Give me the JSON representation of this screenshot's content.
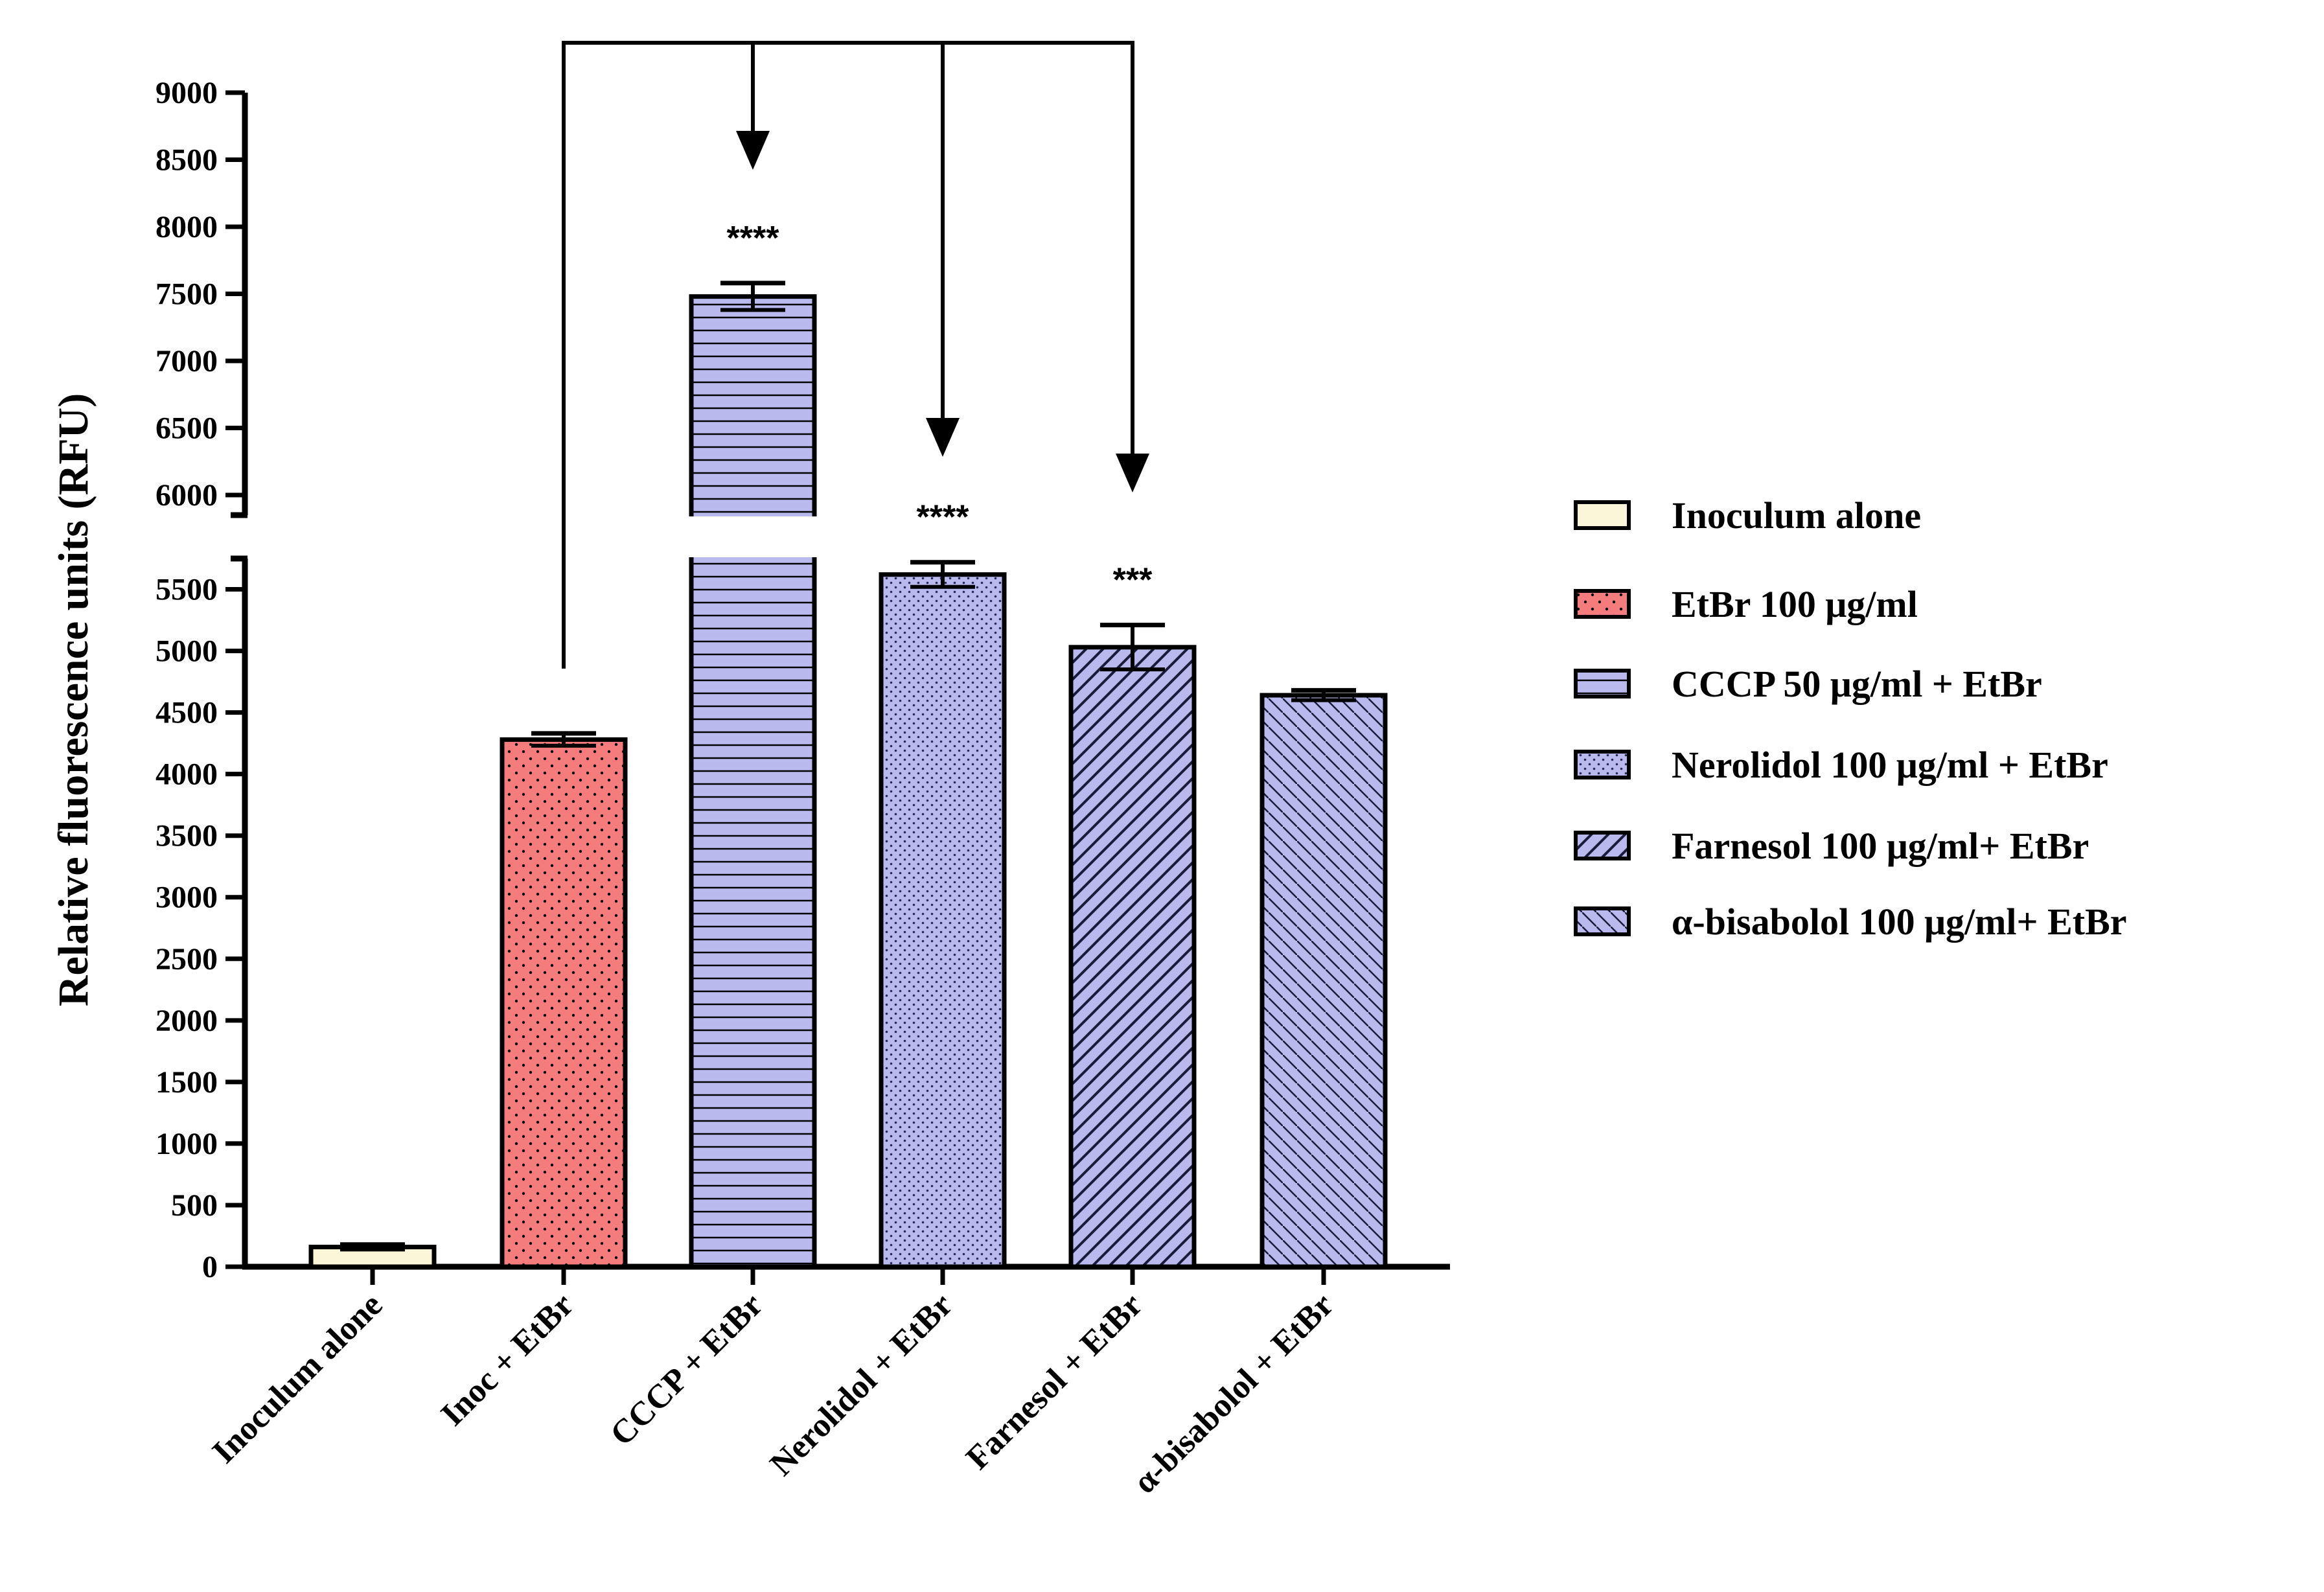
{
  "chart_data": {
    "type": "bar",
    "title": "",
    "xlabel": "",
    "ylabel": "Relative fluorescence units (RFU)",
    "axis_break": [
      5750,
      5850
    ],
    "ylim_lower": [
      0,
      5750
    ],
    "ylim_upper": [
      5850,
      9000
    ],
    "yticks_lower": [
      "0",
      "500",
      "1000",
      "1500",
      "2000",
      "2500",
      "3000",
      "3500",
      "4000",
      "4500",
      "5000",
      "5500"
    ],
    "yticks_upper": [
      "6000",
      "6500",
      "7000",
      "7500",
      "8000",
      "8500",
      "9000"
    ],
    "categories": [
      "Inoculum alone",
      "Inoc + EtBr",
      "CCCP + EtBr",
      "Nerolidol + EtBr",
      "Farnesol + EtBr",
      "α-bisabolol + EtBr"
    ],
    "values": [
      160,
      4280,
      7480,
      5620,
      5030,
      4640
    ],
    "errors": [
      20,
      50,
      100,
      100,
      180,
      40
    ],
    "significance": [
      "",
      "",
      "****",
      "****",
      "***",
      ""
    ],
    "comparison_from": "Inoc + EtBr",
    "comparison_to": [
      "CCCP + EtBr",
      "Nerolidol + EtBr",
      "Farnesol + EtBr"
    ],
    "legend_position": "right",
    "legend": [
      "Inoculum alone",
      "EtBr 100 μg/ml",
      "CCCP 50  μg/ml + EtBr",
      "Nerolidol 100 μg/ml + EtBr",
      "Farnesol 100 μg/ml+ EtBr",
      "α-bisabolol 100 μg/ml+ EtBr"
    ],
    "colors": {
      "inoculum": "#fcf6d8",
      "etbr": "#f47c7c",
      "treatment": "#b9b9ee",
      "outline": "#000000"
    },
    "patterns": [
      "none",
      "dots",
      "horizontal-lines",
      "fine-dots",
      "diagonal-up",
      "diagonal-down"
    ]
  }
}
